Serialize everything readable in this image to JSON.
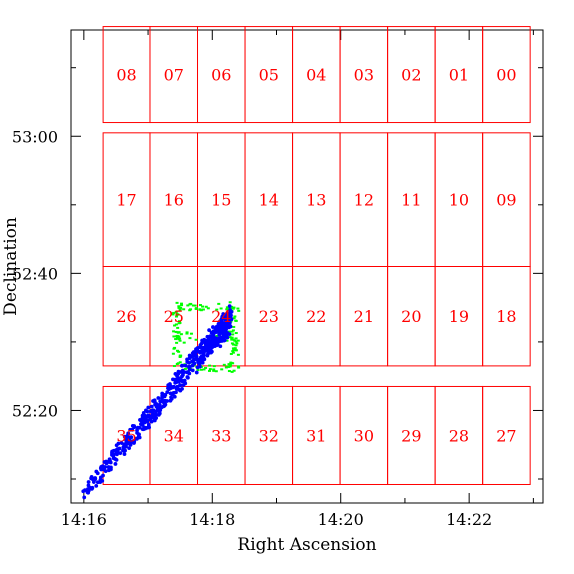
{
  "chart_data": {
    "type": "scatter",
    "title": "",
    "xlabel": "Right Ascension",
    "ylabel": "Declination",
    "x_ticks": [
      "14:16",
      "14:18",
      "14:20",
      "14:22"
    ],
    "y_ticks": [
      "52:20",
      "52:40",
      "53:00"
    ],
    "x_unit": "minutes of right ascension past 14h (axis increases to the right as drawn)",
    "y_unit": "arcminutes of declination past 52°",
    "xlim": [
      15.8,
      23.15
    ],
    "ylim": [
      6.5,
      75.5
    ],
    "grid": false,
    "colors": {
      "fields": "#ff0000",
      "points": "#0000ff",
      "region": "#00ff00",
      "axes": "#000000"
    },
    "fields": [
      {
        "label": "08",
        "ra": [
          16.3,
          17.03
        ],
        "dec": [
          62.0,
          76.0
        ]
      },
      {
        "label": "07",
        "ra": [
          17.03,
          17.77
        ],
        "dec": [
          62.0,
          76.0
        ]
      },
      {
        "label": "06",
        "ra": [
          17.77,
          18.51
        ],
        "dec": [
          62.0,
          76.0
        ]
      },
      {
        "label": "05",
        "ra": [
          18.51,
          19.25
        ],
        "dec": [
          62.0,
          76.0
        ]
      },
      {
        "label": "04",
        "ra": [
          19.25,
          19.99
        ],
        "dec": [
          62.0,
          76.0
        ]
      },
      {
        "label": "03",
        "ra": [
          19.99,
          20.73
        ],
        "dec": [
          62.0,
          76.0
        ]
      },
      {
        "label": "02",
        "ra": [
          20.73,
          21.47
        ],
        "dec": [
          62.0,
          76.0
        ]
      },
      {
        "label": "01",
        "ra": [
          21.47,
          22.21
        ],
        "dec": [
          62.0,
          76.0
        ]
      },
      {
        "label": "00",
        "ra": [
          22.21,
          22.95
        ],
        "dec": [
          62.0,
          76.0
        ]
      },
      {
        "label": "17",
        "ra": [
          16.3,
          17.03
        ],
        "dec": [
          41.0,
          60.5
        ]
      },
      {
        "label": "16",
        "ra": [
          17.03,
          17.77
        ],
        "dec": [
          41.0,
          60.5
        ]
      },
      {
        "label": "15",
        "ra": [
          17.77,
          18.51
        ],
        "dec": [
          41.0,
          60.5
        ]
      },
      {
        "label": "14",
        "ra": [
          18.51,
          19.25
        ],
        "dec": [
          41.0,
          60.5
        ]
      },
      {
        "label": "13",
        "ra": [
          19.25,
          19.99
        ],
        "dec": [
          41.0,
          60.5
        ]
      },
      {
        "label": "12",
        "ra": [
          19.99,
          20.73
        ],
        "dec": [
          41.0,
          60.5
        ]
      },
      {
        "label": "11",
        "ra": [
          20.73,
          21.47
        ],
        "dec": [
          41.0,
          60.5
        ]
      },
      {
        "label": "10",
        "ra": [
          21.47,
          22.21
        ],
        "dec": [
          41.0,
          60.5
        ]
      },
      {
        "label": "09",
        "ra": [
          22.21,
          22.95
        ],
        "dec": [
          41.0,
          60.5
        ]
      },
      {
        "label": "26",
        "ra": [
          16.3,
          17.03
        ],
        "dec": [
          26.5,
          41.0
        ]
      },
      {
        "label": "25",
        "ra": [
          17.03,
          17.77
        ],
        "dec": [
          26.5,
          41.0
        ]
      },
      {
        "label": "24",
        "ra": [
          17.77,
          18.51
        ],
        "dec": [
          26.5,
          41.0
        ]
      },
      {
        "label": "23",
        "ra": [
          18.51,
          19.25
        ],
        "dec": [
          26.5,
          41.0
        ]
      },
      {
        "label": "22",
        "ra": [
          19.25,
          19.99
        ],
        "dec": [
          26.5,
          41.0
        ]
      },
      {
        "label": "21",
        "ra": [
          19.99,
          20.73
        ],
        "dec": [
          26.5,
          41.0
        ]
      },
      {
        "label": "20",
        "ra": [
          20.73,
          21.47
        ],
        "dec": [
          26.5,
          41.0
        ]
      },
      {
        "label": "19",
        "ra": [
          21.47,
          22.21
        ],
        "dec": [
          26.5,
          41.0
        ]
      },
      {
        "label": "18",
        "ra": [
          22.21,
          22.95
        ],
        "dec": [
          26.5,
          41.0
        ]
      },
      {
        "label": "35",
        "ra": [
          16.3,
          17.03
        ],
        "dec": [
          9.2,
          23.5
        ]
      },
      {
        "label": "34",
        "ra": [
          17.03,
          17.77
        ],
        "dec": [
          9.2,
          23.5
        ]
      },
      {
        "label": "33",
        "ra": [
          17.77,
          18.51
        ],
        "dec": [
          9.2,
          23.5
        ]
      },
      {
        "label": "32",
        "ra": [
          18.51,
          19.25
        ],
        "dec": [
          9.2,
          23.5
        ]
      },
      {
        "label": "31",
        "ra": [
          19.25,
          19.99
        ],
        "dec": [
          9.2,
          23.5
        ]
      },
      {
        "label": "30",
        "ra": [
          19.99,
          20.73
        ],
        "dec": [
          9.2,
          23.5
        ]
      },
      {
        "label": "29",
        "ra": [
          20.73,
          21.47
        ],
        "dec": [
          9.2,
          23.5
        ]
      },
      {
        "label": "28",
        "ra": [
          21.47,
          22.21
        ],
        "dec": [
          9.2,
          23.5
        ]
      },
      {
        "label": "27",
        "ra": [
          22.21,
          22.95
        ],
        "dec": [
          9.2,
          23.5
        ]
      }
    ],
    "green_region": {
      "ra": [
        17.45,
        18.35
      ],
      "dec": [
        26.2,
        35.2
      ]
    },
    "point_band": {
      "count": 420,
      "start": {
        "ra": 16.0,
        "dec": 7.8
      },
      "end": {
        "ra": 18.3,
        "dec": 33.5
      },
      "spread_dec": 1.6
    }
  }
}
